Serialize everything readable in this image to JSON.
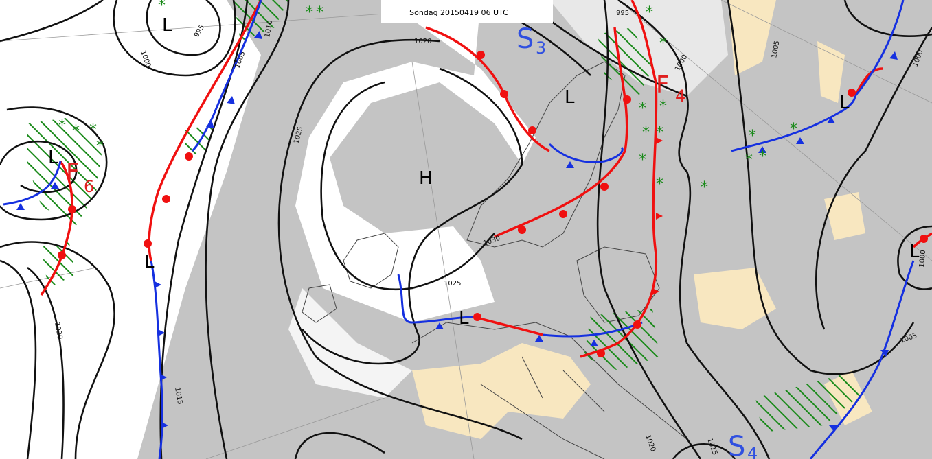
{
  "header": {
    "title": "Söndag 20150419 06 UTC"
  },
  "pressure_centers": [
    "H",
    "L",
    "L",
    "L",
    "L",
    "L",
    "L",
    "L"
  ],
  "systems": [
    {
      "letter": "S",
      "number": "3"
    },
    {
      "letter": "S",
      "number": "4"
    }
  ],
  "fronts": [
    {
      "letter": "F",
      "number": "4"
    },
    {
      "letter": "F",
      "number": "6"
    }
  ],
  "isobar_labels": [
    1020,
    995,
    1000,
    995,
    1000,
    1005,
    1010,
    1025,
    1030,
    1025,
    1020,
    1015,
    1005,
    1000,
    1000,
    1005,
    1020,
    1015
  ]
}
